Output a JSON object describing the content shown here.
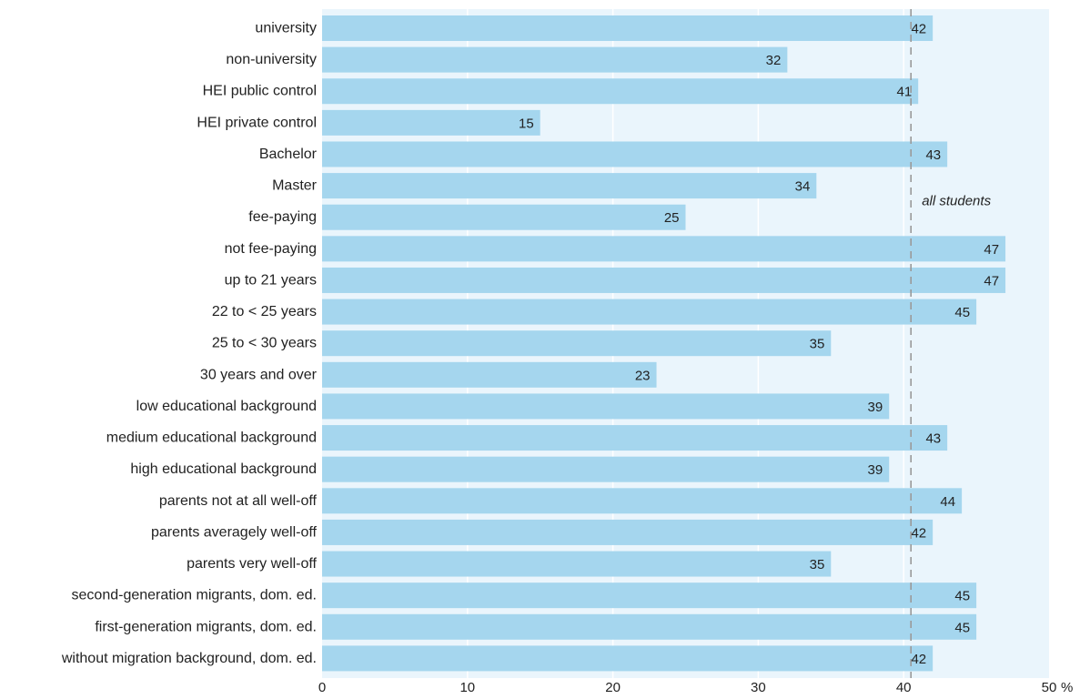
{
  "chart_data": {
    "type": "bar",
    "orientation": "horizontal",
    "categories": [
      "university",
      "non-university",
      "HEI public control",
      "HEI private control",
      "Bachelor",
      "Master",
      "fee-paying",
      "not fee-paying",
      "up to 21 years",
      "22 to < 25 years",
      "25 to < 30 years",
      "30 years and over",
      "low educational background",
      "medium educational background",
      "high educational background",
      "parents not at all well-off",
      "parents averagely well-off",
      "parents very well-off",
      "second-generation migrants, dom. ed.",
      "first-generation migrants, dom. ed.",
      "without migration background, dom. ed."
    ],
    "values": [
      42,
      32,
      41,
      15,
      43,
      34,
      25,
      47,
      47,
      45,
      35,
      23,
      39,
      43,
      39,
      44,
      42,
      35,
      45,
      45,
      42
    ],
    "xlim": [
      0,
      50
    ],
    "xticks": [
      0,
      10,
      20,
      30,
      40,
      50
    ],
    "x_unit": "%",
    "reference_line": {
      "value": 40.5,
      "label": "all students"
    },
    "grid": true,
    "colors": {
      "bar": "#a5d6ee",
      "plot_background": "#eaf5fc",
      "grid": "#ffffff",
      "reference_line": "#9a9a9a",
      "text": "#222222"
    }
  }
}
